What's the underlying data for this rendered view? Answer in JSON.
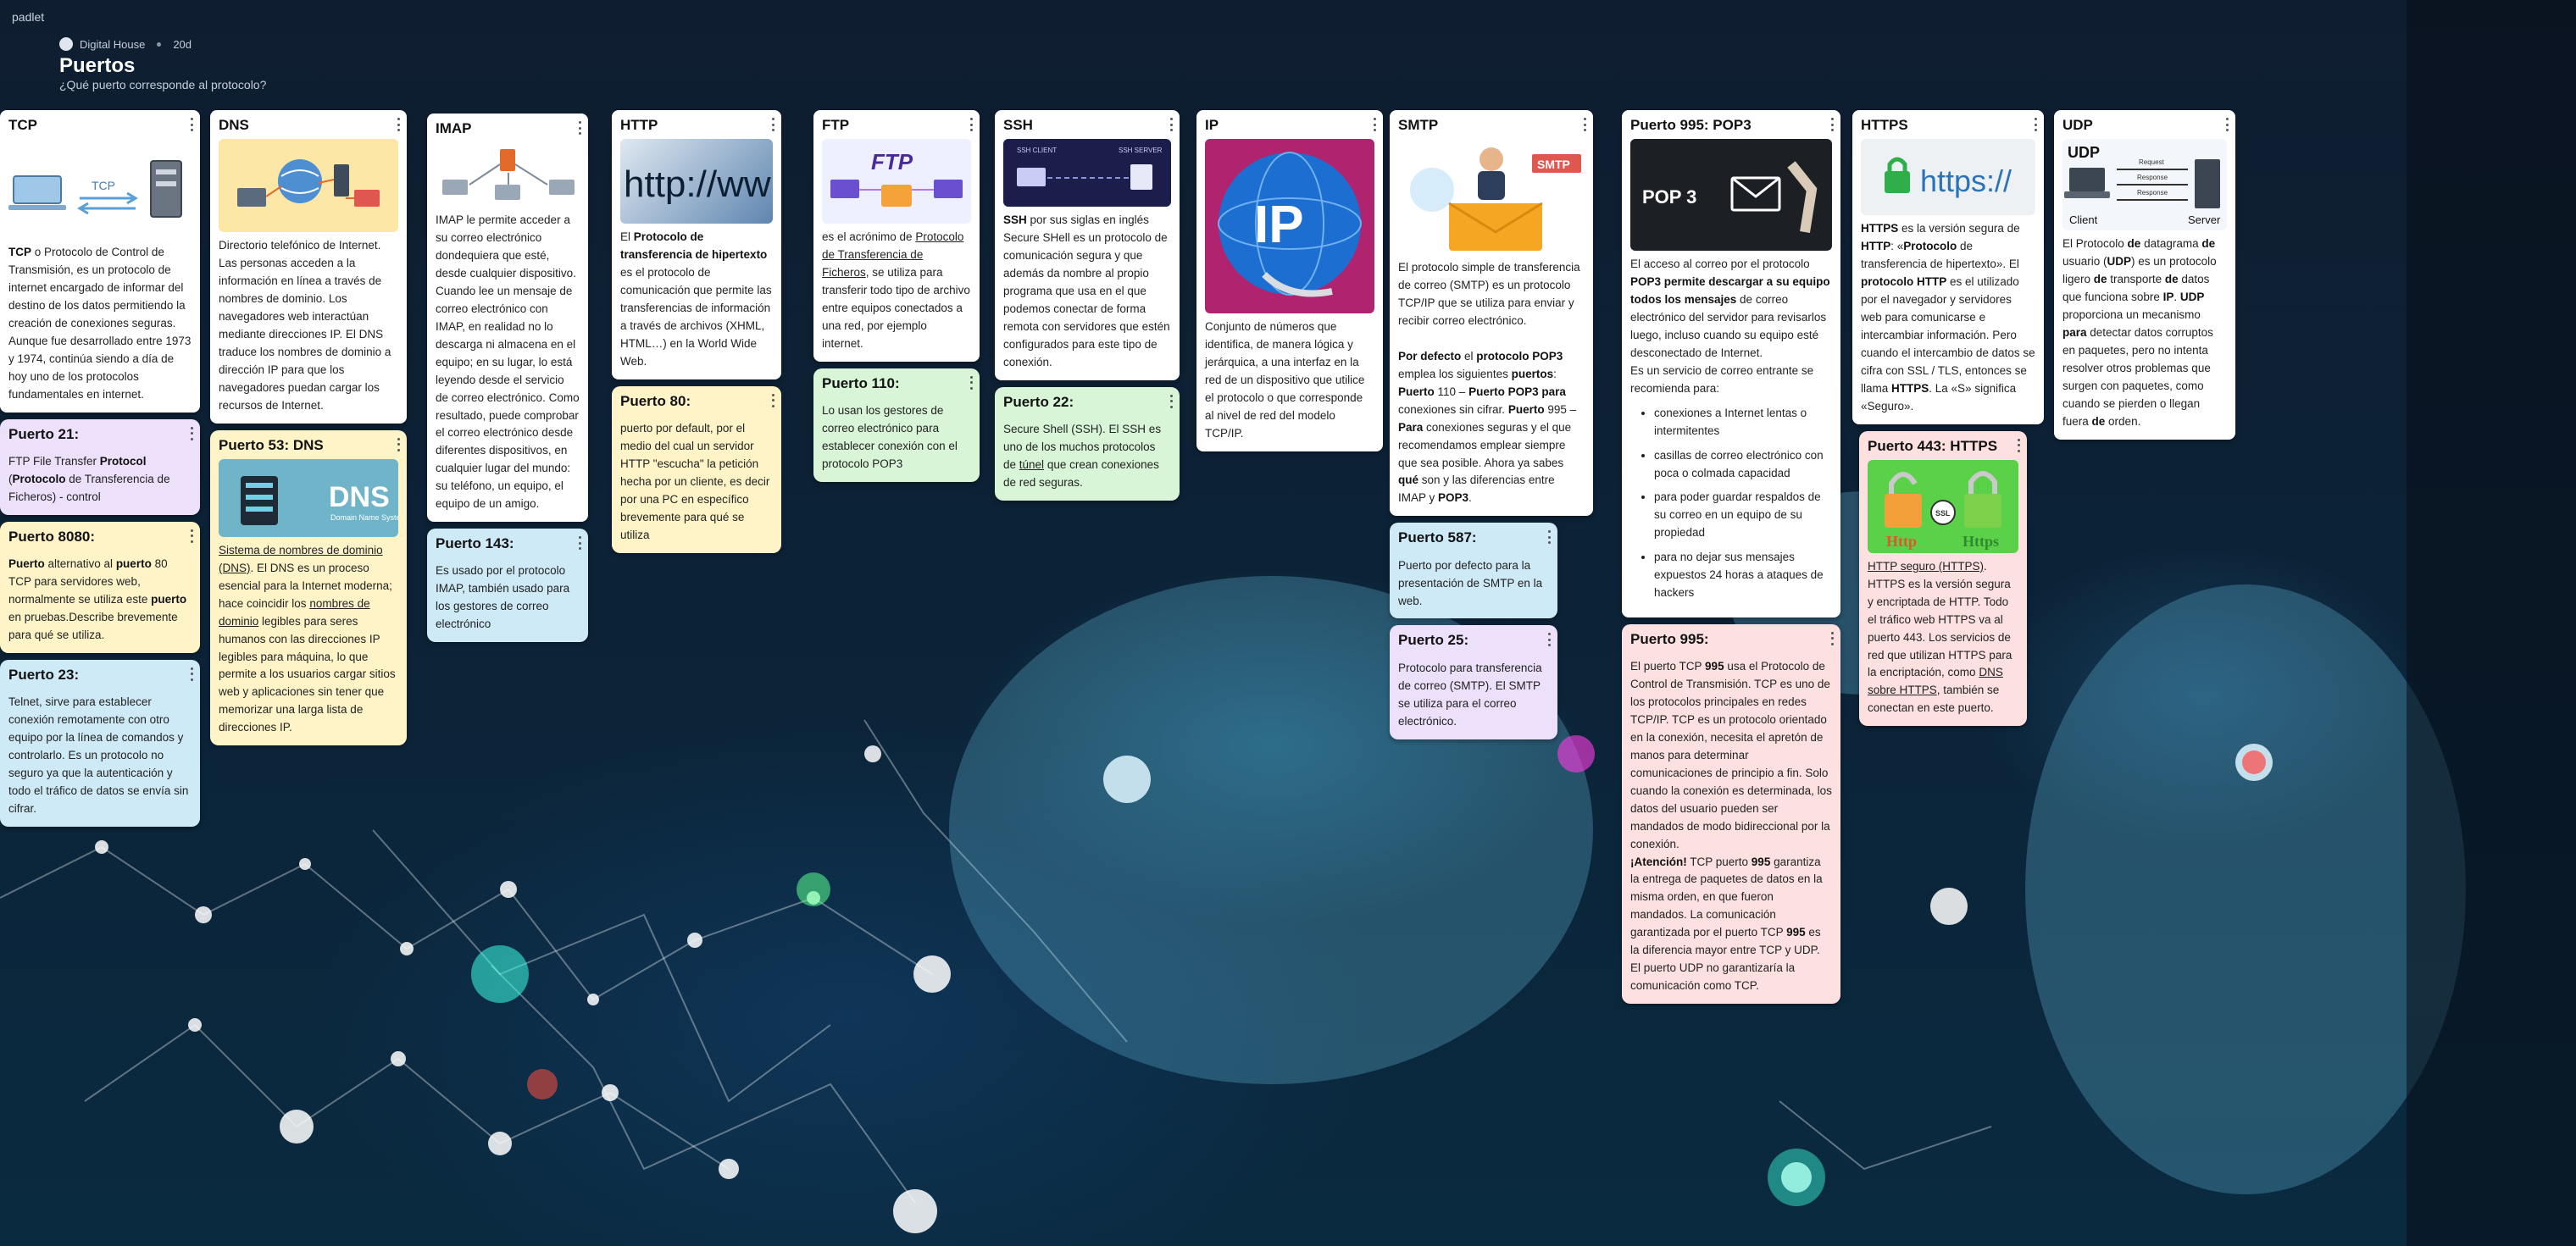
{
  "app": {
    "brand": "padlet"
  },
  "board": {
    "owner": "Digital House",
    "age": "20d",
    "title": "Puertos",
    "subtitle": "¿Qué puerto corresponde al protocolo?"
  },
  "colors": {
    "pink": "#fde0e0",
    "blue": "#cfeaf7",
    "yellow": "#fff3c8",
    "green": "#d8f5d7",
    "purple": "#ece0fb",
    "white": "#ffffff"
  },
  "columns": {
    "tcp": {
      "title": "TCP",
      "body_html": "<b>TCP</b> o Protocolo de Control de Transmisión, es un protocolo de internet encargado de informar del destino de los datos permitiendo la creación de conexiones seguras. Aunque fue desarrollado entre 1973 y 1974, continúa siendo a día de hoy uno de los protocolos fundamentales en internet.",
      "image_icon": "network-diagram-icon",
      "posts": [
        {
          "title": "Puerto 21:",
          "color": "purple",
          "body_html": "FTP File Transfer <b>Protocol</b> (<b>Protocolo</b> de Transferencia de Ficheros) - control"
        },
        {
          "title": "Puerto 8080:",
          "color": "yellow",
          "body_html": "<b>Puerto</b> alternativo al <b>puerto</b> 80 TCP para servidores web, normalmente se utiliza este <b>puerto</b> en pruebas.Describe brevemente para qué se utiliza."
        },
        {
          "title": "Puerto 23:",
          "color": "blue",
          "body_html": "Telnet, sirve para establecer conexión remotamente con otro equipo por la línea de comandos y controlarlo. Es un protocolo no seguro ya que la autenticación y todo el tráfico de datos se envía sin cifrar."
        }
      ]
    },
    "dns": {
      "title": "DNS",
      "body_html": "Directorio telefónico de Internet. Las personas acceden a la información en línea a través de nombres de dominio. Los navegadores web interactúan mediante direcciones IP. El DNS traduce los nombres de dominio a dirección IP para que los navegadores puedan cargar los recursos de Internet.",
      "image_icon": "dns-diagram-icon",
      "posts": [
        {
          "title": "Puerto 53: DNS",
          "color": "yellow",
          "image_label": "DNS",
          "image_caption": "Domain Name System",
          "body_html": "<u>Sistema de nombres de dominio (DNS)</u>. El DNS es un proceso esencial para la Internet moderna; hace coincidir los <u>nombres de dominio</u> legibles para seres humanos con las direcciones IP legibles para máquina, lo que permite a los usuarios cargar sitios web y aplicaciones sin tener que memorizar una larga lista de direcciones IP."
        }
      ]
    },
    "imap": {
      "title": "IMAP",
      "body_html": "IMAP le permite acceder a su correo electrónico dondequiera que esté, desde cualquier dispositivo. Cuando lee un mensaje de correo electrónico con IMAP, en realidad no lo descarga ni almacena en el equipo; en su lugar, lo está leyendo desde el servicio de correo electrónico. Como resultado, puede comprobar el correo electrónico desde diferentes dispositivos, en cualquier lugar del mundo: su teléfono, un equipo, el equipo de un amigo.",
      "image_icon": "imap-diagram-icon",
      "posts": [
        {
          "title": "Puerto 143:",
          "color": "blue",
          "body_html": "Es usado por el protocolo IMAP, también usado para los gestores de correo electrónico"
        }
      ]
    },
    "http": {
      "title": "HTTP",
      "image_label": "http://ww",
      "body_html": "El <b>Protocolo de transferencia de hipertexto</b> es el protocolo de comunicación que permite las transferencias de información a través de archivos (XHML, HTML…) en la World Wide Web.",
      "posts": [
        {
          "title": "Puerto 80:",
          "color": "yellow",
          "body_html": "puerto por default, por el medio del cual un servidor HTTP \"escucha\" la petición hecha por un cliente, es decir por una PC en específico brevemente para qué se utiliza"
        }
      ]
    },
    "ftp": {
      "title": "FTP",
      "image_label": "FTP",
      "body_html": "es el acrónimo de <u>Protocolo de Transferencia de Ficheros</u>, se utiliza para transferir todo tipo de archivo entre equipos conectados a una red, por ejemplo internet.",
      "posts": [
        {
          "title": "Puerto 110:",
          "color": "green",
          "body_html": "Lo usan los gestores de correo electrónico para establecer conexión con el protocolo POP3"
        }
      ]
    },
    "ssh": {
      "title": "SSH",
      "image_labels": [
        "SSH CLIENT",
        "SSH SERVER"
      ],
      "body_html": "<b>SSH</b> por sus siglas en inglés Secure SHell es un protocolo de comunicación segura y que además da nombre al propio programa que usa en el que podemos conectar de forma remota con servidores que estén configurados para este tipo de conexión.",
      "posts": [
        {
          "title": "Puerto 22:",
          "color": "green",
          "body_html": "Secure Shell (SSH). El SSH es uno de los muchos protocolos de <u>túnel</u> que crean conexiones de red seguras."
        }
      ]
    },
    "ip": {
      "title": "IP",
      "image_label": "IP",
      "body_html": "Conjunto de números que identifica, de manera lógica y jerárquica, a una interfaz en la red de un dispositivo que utilice el protocolo o que corresponde al nivel de red del modelo TCP/IP."
    },
    "smtp": {
      "title": "SMTP",
      "image_label": "SMTP",
      "body_html": "El protocolo simple de transferencia de correo (SMTP) es un protocolo TCP/IP que se utiliza para enviar y recibir correo electrónico.<br><br><b>Por defecto</b> el <b>protocolo POP3</b> emplea los siguientes <b>puertos</b>: <b>Puerto</b> 110 – <b>Puerto POP3 para</b> conexiones sin cifrar. <b>Puerto</b> 995 – <b>Para</b> conexiones seguras y el que recomendamos emplear siempre que sea posible. Ahora ya sabes <b>qué</b> son y las diferencias entre IMAP y <b>POP3</b>.",
      "posts": [
        {
          "title": "Puerto 587:",
          "color": "blue",
          "body_html": "Puerto por defecto para la presentación de SMTP en la web."
        },
        {
          "title": "Puerto 25:",
          "color": "purple",
          "body_html": "Protocolo para transferencia de correo (SMTP). El SMTP se utiliza para el correo electrónico."
        }
      ]
    },
    "pop3": {
      "title": "Puerto 995: POP3",
      "image_label": "POP 3",
      "body_html": "El acceso al correo por el protocolo <b>POP3 permite descargar a su equipo todos los mensajes</b> de correo electrónico del servidor para revisarlos luego, incluso cuando su equipo esté desconectado de Internet.<br>Es un servicio de correo entrante se recomienda para:",
      "bullets": [
        "conexiones a Internet lentas o intermitentes",
        "casillas de correo electrónico con poca o colmada capacidad",
        "para poder guardar respaldos de su correo en un equipo de su propiedad",
        "para no dejar sus mensajes expuestos 24 horas a ataques de hackers"
      ],
      "posts": [
        {
          "title": "Puerto 995:",
          "color": "pink",
          "body_html": "El puerto TCP <b>995</b> usa el Protocolo de Control de Transmisión. TCP es uno de los protocolos principales en redes TCP/IP. TCP es un protocolo orientado en la conexión, necesita el apretón de manos para determinar comunicaciones de principio a fin. Solo cuando la conexión es determinada, los datos del usuario pueden ser mandados de modo bidireccional por la conexión.<br><b>¡Atención!</b> TCP puerto <b>995</b> garantiza la entrega de paquetes de datos en la misma orden, en que fueron mandados. La comunicación garantizada por el puerto TCP <b>995</b> es la diferencia mayor entre TCP y UDP. El puerto UDP no garantizaría la comunicación como TCP."
        }
      ]
    },
    "https": {
      "title": "HTTPS",
      "image_label": "https://",
      "body_html": "<b>HTTPS</b> es la versión segura de <b>HTTP</b>: «<b>Protocolo</b> de transferencia de hipertexto». El <b>protocolo HTTP</b> es el utilizado por el navegador y servidores web para comunicarse e intercambiar información. Pero cuando el intercambio de datos se cifra con SSL / TLS, entonces se llama <b>HTTPS</b>. La «S» significa «Seguro».",
      "posts": [
        {
          "title": "Puerto 443: HTTPS",
          "color": "pink",
          "image_labels": [
            "Http",
            "SSL",
            "Https"
          ],
          "body_html": "<u>HTTP seguro (HTTPS)</u>. HTTPS es la versión segura y encriptada de HTTP. Todo el tráfico web HTTPS va al puerto 443. Los servicios de red que utilizan HTTPS para la encriptación, como <u>DNS sobre HTTPS</u>, también se conectan en este puerto."
        }
      ]
    },
    "udp": {
      "title": "UDP",
      "image_labels": [
        "UDP",
        "Request",
        "Response",
        "Response",
        "Client",
        "Server"
      ],
      "body_html": "El Protocolo <b>de</b> datagrama <b>de</b> usuario (<b>UDP</b>) es un protocolo ligero <b>de</b> transporte <b>de</b> datos que funciona sobre <b>IP</b>. <b>UDP</b> proporciona un mecanismo <b>para</b> detectar datos corruptos en paquetes, pero no intenta resolver otros problemas que surgen con paquetes, como cuando se pierden o llegan fuera <b>de</b> orden."
    }
  }
}
